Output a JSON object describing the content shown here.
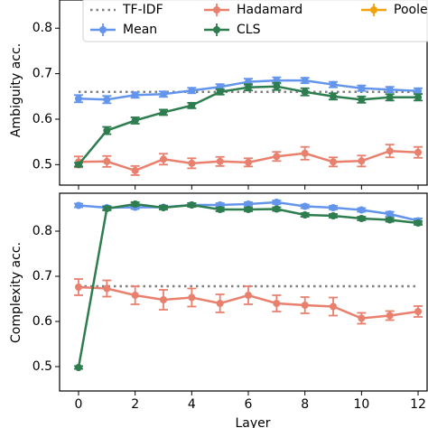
{
  "chart_data": [
    {
      "type": "line",
      "ylabel": "Ambiguity acc.",
      "x": [
        0,
        1,
        2,
        3,
        4,
        5,
        6,
        7,
        8,
        9,
        10,
        11,
        12
      ],
      "xlim": [
        -0.67,
        12.35
      ],
      "xticks": [
        0,
        2,
        4,
        6,
        8,
        10,
        12
      ],
      "ylim": [
        0.455,
        0.862
      ],
      "yticks": [
        0.5,
        0.6,
        0.7,
        0.8
      ],
      "legend": "upper center",
      "series": [
        {
          "name": "TF-IDF",
          "color": "#808080",
          "linestyle": "dotted",
          "values": [
            0.66,
            0.66,
            0.66,
            0.66,
            0.66,
            0.66,
            0.66,
            0.66,
            0.66,
            0.66,
            0.66,
            0.66,
            0.66
          ]
        },
        {
          "name": "Hadamard",
          "color": "#e9806e",
          "values": [
            0.506,
            0.507,
            0.487,
            0.512,
            0.503,
            0.507,
            0.505,
            0.518,
            0.525,
            0.506,
            0.508,
            0.53,
            0.527
          ],
          "errors": [
            0.012,
            0.012,
            0.01,
            0.012,
            0.011,
            0.01,
            0.009,
            0.01,
            0.014,
            0.01,
            0.012,
            0.014,
            0.012
          ]
        },
        {
          "name": "Pooler",
          "color": "#f0a30a",
          "values": [
            null,
            null,
            null,
            null,
            null,
            null,
            null,
            null,
            null,
            null,
            null,
            null,
            null
          ],
          "errors": [
            null,
            null,
            null,
            null,
            null,
            null,
            null,
            null,
            null,
            null,
            null,
            null,
            null
          ]
        },
        {
          "name": "Mean",
          "color": "#6495ed",
          "values": [
            0.645,
            0.643,
            0.653,
            0.655,
            0.663,
            0.671,
            0.682,
            0.685,
            0.685,
            0.676,
            0.668,
            0.665,
            0.662
          ],
          "errors": [
            0.008,
            0.008,
            0.006,
            0.006,
            0.006,
            0.006,
            0.007,
            0.007,
            0.006,
            0.006,
            0.006,
            0.006,
            0.006
          ]
        },
        {
          "name": "CLS",
          "color": "#2e7d4f",
          "values": [
            0.5,
            0.575,
            0.597,
            0.615,
            0.63,
            0.66,
            0.67,
            0.672,
            0.66,
            0.65,
            0.643,
            0.648,
            0.648
          ],
          "errors": [
            0.004,
            0.008,
            0.007,
            0.006,
            0.006,
            0.006,
            0.007,
            0.008,
            0.008,
            0.007,
            0.007,
            0.007,
            0.007
          ]
        }
      ]
    },
    {
      "type": "line",
      "ylabel": "Complexity acc.",
      "xlabel": "Layer",
      "x": [
        0,
        1,
        2,
        3,
        4,
        5,
        6,
        7,
        8,
        9,
        10,
        11,
        12
      ],
      "xlim": [
        -0.67,
        12.35
      ],
      "xticks": [
        0,
        2,
        4,
        6,
        8,
        10,
        12
      ],
      "ylim": [
        0.446,
        0.884
      ],
      "yticks": [
        0.5,
        0.6,
        0.7,
        0.8
      ],
      "series": [
        {
          "color": "#808080",
          "linestyle": "dotted",
          "values": [
            0.678,
            0.678,
            0.678,
            0.678,
            0.678,
            0.678,
            0.678,
            0.678,
            0.678,
            0.678,
            0.678,
            0.678,
            0.678
          ]
        },
        {
          "color": "#e9806e",
          "values": [
            0.676,
            0.673,
            0.658,
            0.648,
            0.653,
            0.64,
            0.658,
            0.64,
            0.636,
            0.633,
            0.607,
            0.613,
            0.622
          ],
          "errors": [
            0.018,
            0.018,
            0.02,
            0.022,
            0.02,
            0.02,
            0.02,
            0.018,
            0.018,
            0.02,
            0.012,
            0.01,
            0.012
          ]
        },
        {
          "color": "#6495ed",
          "values": [
            0.857,
            0.852,
            0.853,
            0.853,
            0.858,
            0.858,
            0.86,
            0.864,
            0.855,
            0.852,
            0.847,
            0.838,
            0.823
          ],
          "errors": [
            0.004,
            0.004,
            0.004,
            0.004,
            0.004,
            0.004,
            0.004,
            0.004,
            0.004,
            0.004,
            0.004,
            0.005,
            0.005
          ]
        },
        {
          "color": "#2e7d4f",
          "values": [
            0.498,
            0.85,
            0.86,
            0.852,
            0.858,
            0.848,
            0.848,
            0.849,
            0.836,
            0.834,
            0.828,
            0.825,
            0.818
          ],
          "errors": [
            0.003,
            0.004,
            0.004,
            0.004,
            0.004,
            0.004,
            0.004,
            0.004,
            0.004,
            0.004,
            0.004,
            0.004,
            0.004
          ]
        }
      ]
    }
  ]
}
